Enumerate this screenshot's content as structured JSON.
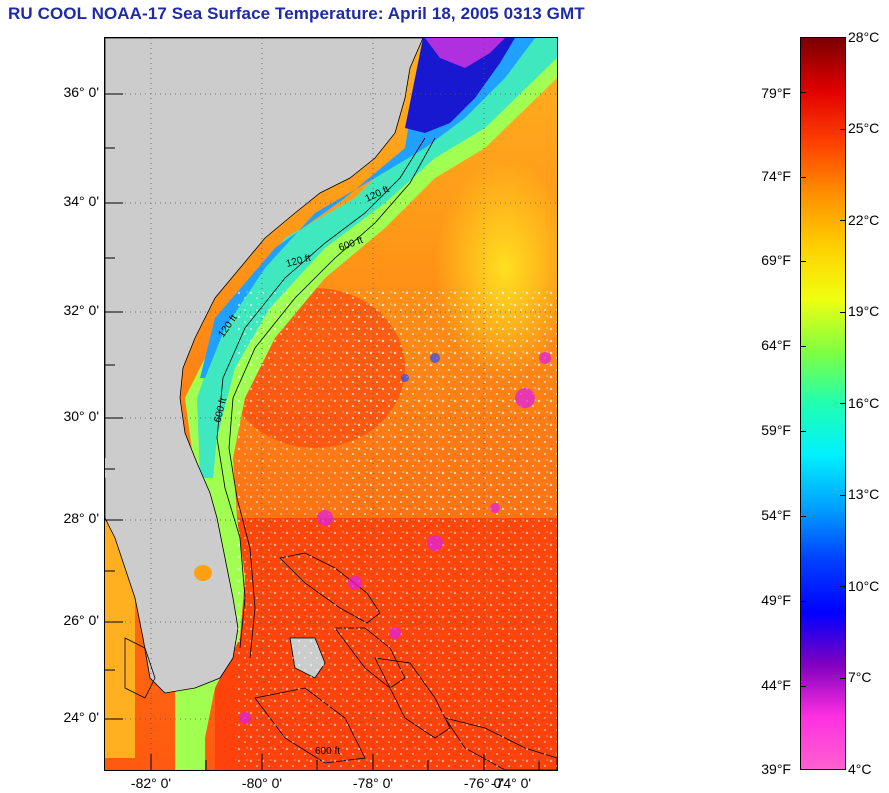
{
  "title": "RU COOL  NOAA-17  Sea Surface Temperature:  April 18, 2005 0313 GMT",
  "map": {
    "latitude_labels": [
      "36° 0'",
      "34° 0'",
      "32° 0'",
      "30° 0'",
      "28° 0'",
      "26° 0'",
      "24° 0'"
    ],
    "longitude_labels": [
      "-82° 0'",
      "-80° 0'",
      "-78° 0'",
      "-76° 0'",
      "-74° 0'"
    ],
    "isobath_labels": [
      "120 ft",
      "600 ft",
      "120 ft",
      "600 ft",
      "120 ft",
      "600 ft"
    ],
    "land_color": "#cccccc",
    "grid": "dotted"
  },
  "colorbar": {
    "fahrenheit_labels": [
      "79°F",
      "74°F",
      "69°F",
      "64°F",
      "59°F",
      "54°F",
      "49°F",
      "44°F",
      "39°F"
    ],
    "celsius_labels": [
      "28°C",
      "25°C",
      "22°C",
      "19°C",
      "16°C",
      "13°C",
      "10°C",
      "7°C",
      "4°C"
    ],
    "colors": [
      "#7a0000",
      "#e00000",
      "#ff4000",
      "#ff9000",
      "#ffd000",
      "#f0ff10",
      "#80ff40",
      "#20ffb0",
      "#00f0ff",
      "#00a0ff",
      "#0040ff",
      "#0000ff",
      "#8000c0",
      "#ff30e0",
      "#ff60d0"
    ]
  }
}
